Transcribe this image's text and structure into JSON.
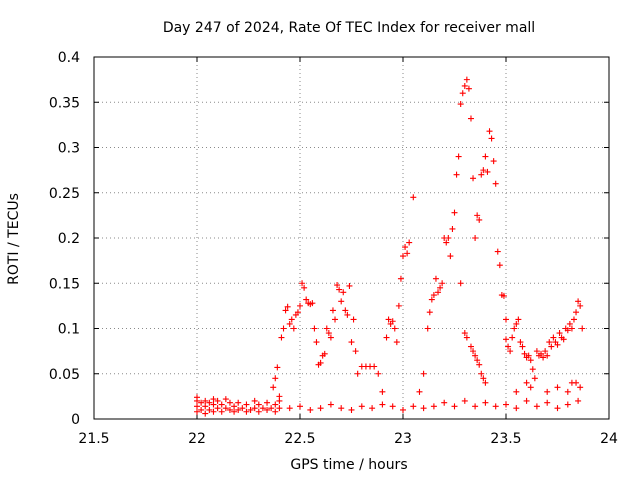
{
  "chart_data": {
    "type": "scatter",
    "title": "Day 247 of 2024, Rate Of TEC Index for receiver mall",
    "xlabel": "GPS time / hours",
    "ylabel": "ROTI / TECUs",
    "xlim": [
      21.5,
      24
    ],
    "ylim": [
      0,
      0.4
    ],
    "x_ticks": [
      21.5,
      22,
      22.5,
      23,
      23.5,
      24
    ],
    "x_tick_labels": [
      "21.5",
      "22",
      "22.5",
      "23",
      "23.5",
      "24"
    ],
    "y_ticks": [
      0,
      0.05,
      0.1,
      0.15,
      0.2,
      0.25,
      0.3,
      0.35,
      0.4
    ],
    "y_tick_labels": [
      "0",
      "0.05",
      "0.1",
      "0.15",
      "0.2",
      "0.25",
      "0.3",
      "0.35",
      "0.4"
    ],
    "grid": true,
    "marker": "+",
    "color": "#ff0000",
    "series": [
      {
        "name": "ROTI",
        "points": [
          [
            22.0,
            0.008
          ],
          [
            22.0,
            0.014
          ],
          [
            22.0,
            0.02
          ],
          [
            22.0,
            0.024
          ],
          [
            22.02,
            0.01
          ],
          [
            22.02,
            0.018
          ],
          [
            22.04,
            0.006
          ],
          [
            22.04,
            0.014
          ],
          [
            22.04,
            0.02
          ],
          [
            22.06,
            0.01
          ],
          [
            22.06,
            0.018
          ],
          [
            22.08,
            0.008
          ],
          [
            22.08,
            0.016
          ],
          [
            22.08,
            0.022
          ],
          [
            22.1,
            0.012
          ],
          [
            22.1,
            0.02
          ],
          [
            22.12,
            0.008
          ],
          [
            22.12,
            0.016
          ],
          [
            22.14,
            0.012
          ],
          [
            22.14,
            0.022
          ],
          [
            22.16,
            0.01
          ],
          [
            22.16,
            0.018
          ],
          [
            22.18,
            0.008
          ],
          [
            22.18,
            0.014
          ],
          [
            22.2,
            0.01
          ],
          [
            22.2,
            0.018
          ],
          [
            22.22,
            0.012
          ],
          [
            22.24,
            0.008
          ],
          [
            22.24,
            0.016
          ],
          [
            22.26,
            0.01
          ],
          [
            22.28,
            0.012
          ],
          [
            22.28,
            0.02
          ],
          [
            22.3,
            0.008
          ],
          [
            22.3,
            0.016
          ],
          [
            22.32,
            0.012
          ],
          [
            22.34,
            0.01
          ],
          [
            22.34,
            0.018
          ],
          [
            22.36,
            0.012
          ],
          [
            22.38,
            0.008
          ],
          [
            22.38,
            0.016
          ],
          [
            22.4,
            0.012
          ],
          [
            22.4,
            0.02
          ],
          [
            22.37,
            0.035
          ],
          [
            22.38,
            0.045
          ],
          [
            22.39,
            0.057
          ],
          [
            22.4,
            0.025
          ],
          [
            22.41,
            0.09
          ],
          [
            22.42,
            0.1
          ],
          [
            22.43,
            0.12
          ],
          [
            22.44,
            0.124
          ],
          [
            22.45,
            0.105
          ],
          [
            22.46,
            0.11
          ],
          [
            22.47,
            0.1
          ],
          [
            22.48,
            0.115
          ],
          [
            22.49,
            0.118
          ],
          [
            22.5,
            0.125
          ],
          [
            22.51,
            0.15
          ],
          [
            22.52,
            0.145
          ],
          [
            22.53,
            0.132
          ],
          [
            22.54,
            0.128
          ],
          [
            22.55,
            0.127
          ],
          [
            22.56,
            0.128
          ],
          [
            22.57,
            0.1
          ],
          [
            22.58,
            0.085
          ],
          [
            22.59,
            0.06
          ],
          [
            22.6,
            0.062
          ],
          [
            22.61,
            0.07
          ],
          [
            22.62,
            0.072
          ],
          [
            22.63,
            0.1
          ],
          [
            22.64,
            0.095
          ],
          [
            22.65,
            0.09
          ],
          [
            22.66,
            0.12
          ],
          [
            22.67,
            0.11
          ],
          [
            22.68,
            0.148
          ],
          [
            22.69,
            0.143
          ],
          [
            22.7,
            0.13
          ],
          [
            22.71,
            0.14
          ],
          [
            22.72,
            0.12
          ],
          [
            22.73,
            0.115
          ],
          [
            22.74,
            0.147
          ],
          [
            22.75,
            0.085
          ],
          [
            22.76,
            0.11
          ],
          [
            22.77,
            0.075
          ],
          [
            22.78,
            0.05
          ],
          [
            22.8,
            0.058
          ],
          [
            22.82,
            0.058
          ],
          [
            22.84,
            0.058
          ],
          [
            22.86,
            0.058
          ],
          [
            22.88,
            0.05
          ],
          [
            22.9,
            0.03
          ],
          [
            22.92,
            0.09
          ],
          [
            22.93,
            0.11
          ],
          [
            22.94,
            0.105
          ],
          [
            22.95,
            0.108
          ],
          [
            22.96,
            0.1
          ],
          [
            22.97,
            0.085
          ],
          [
            22.98,
            0.125
          ],
          [
            22.99,
            0.155
          ],
          [
            23.0,
            0.18
          ],
          [
            23.01,
            0.19
          ],
          [
            23.02,
            0.183
          ],
          [
            23.03,
            0.195
          ],
          [
            23.05,
            0.245
          ],
          [
            23.08,
            0.03
          ],
          [
            23.1,
            0.05
          ],
          [
            23.12,
            0.1
          ],
          [
            23.13,
            0.118
          ],
          [
            23.14,
            0.132
          ],
          [
            23.15,
            0.137
          ],
          [
            23.16,
            0.155
          ],
          [
            23.17,
            0.14
          ],
          [
            23.18,
            0.145
          ],
          [
            23.19,
            0.15
          ],
          [
            23.2,
            0.2
          ],
          [
            23.21,
            0.195
          ],
          [
            23.22,
            0.2
          ],
          [
            23.23,
            0.18
          ],
          [
            23.24,
            0.21
          ],
          [
            23.25,
            0.228
          ],
          [
            23.26,
            0.27
          ],
          [
            23.27,
            0.29
          ],
          [
            23.28,
            0.348
          ],
          [
            23.29,
            0.36
          ],
          [
            23.3,
            0.368
          ],
          [
            23.31,
            0.375
          ],
          [
            23.32,
            0.365
          ],
          [
            23.33,
            0.332
          ],
          [
            23.34,
            0.266
          ],
          [
            23.35,
            0.2
          ],
          [
            23.36,
            0.225
          ],
          [
            23.37,
            0.22
          ],
          [
            23.38,
            0.27
          ],
          [
            23.39,
            0.275
          ],
          [
            23.4,
            0.29
          ],
          [
            23.41,
            0.273
          ],
          [
            23.42,
            0.318
          ],
          [
            23.43,
            0.31
          ],
          [
            23.44,
            0.285
          ],
          [
            23.45,
            0.26
          ],
          [
            23.46,
            0.185
          ],
          [
            23.47,
            0.17
          ],
          [
            23.48,
            0.137
          ],
          [
            23.49,
            0.136
          ],
          [
            23.5,
            0.11
          ],
          [
            23.28,
            0.15
          ],
          [
            23.3,
            0.095
          ],
          [
            23.31,
            0.09
          ],
          [
            23.33,
            0.08
          ],
          [
            23.34,
            0.075
          ],
          [
            23.35,
            0.07
          ],
          [
            23.36,
            0.065
          ],
          [
            23.37,
            0.06
          ],
          [
            23.38,
            0.05
          ],
          [
            23.39,
            0.045
          ],
          [
            23.4,
            0.04
          ],
          [
            23.5,
            0.088
          ],
          [
            23.51,
            0.08
          ],
          [
            23.52,
            0.075
          ],
          [
            23.53,
            0.09
          ],
          [
            23.54,
            0.1
          ],
          [
            23.55,
            0.105
          ],
          [
            23.56,
            0.11
          ],
          [
            23.57,
            0.085
          ],
          [
            23.58,
            0.08
          ],
          [
            23.59,
            0.072
          ],
          [
            23.6,
            0.068
          ],
          [
            23.61,
            0.07
          ],
          [
            23.62,
            0.065
          ],
          [
            23.63,
            0.055
          ],
          [
            23.64,
            0.045
          ],
          [
            23.65,
            0.075
          ],
          [
            23.66,
            0.07
          ],
          [
            23.67,
            0.072
          ],
          [
            23.68,
            0.068
          ],
          [
            23.69,
            0.075
          ],
          [
            23.7,
            0.07
          ],
          [
            23.71,
            0.085
          ],
          [
            23.72,
            0.08
          ],
          [
            23.73,
            0.09
          ],
          [
            23.74,
            0.085
          ],
          [
            23.75,
            0.082
          ],
          [
            23.76,
            0.095
          ],
          [
            23.77,
            0.09
          ],
          [
            23.78,
            0.088
          ],
          [
            23.79,
            0.1
          ],
          [
            23.8,
            0.098
          ],
          [
            23.81,
            0.105
          ],
          [
            23.82,
            0.1
          ],
          [
            23.83,
            0.11
          ],
          [
            23.84,
            0.118
          ],
          [
            23.85,
            0.13
          ],
          [
            23.86,
            0.125
          ],
          [
            23.87,
            0.1
          ],
          [
            22.45,
            0.012
          ],
          [
            22.5,
            0.014
          ],
          [
            22.55,
            0.01
          ],
          [
            22.6,
            0.012
          ],
          [
            22.65,
            0.016
          ],
          [
            22.7,
            0.012
          ],
          [
            22.75,
            0.01
          ],
          [
            22.8,
            0.014
          ],
          [
            22.85,
            0.012
          ],
          [
            22.9,
            0.016
          ],
          [
            22.95,
            0.014
          ],
          [
            23.0,
            0.01
          ],
          [
            23.05,
            0.014
          ],
          [
            23.1,
            0.012
          ],
          [
            23.15,
            0.014
          ],
          [
            23.2,
            0.018
          ],
          [
            23.25,
            0.014
          ],
          [
            23.3,
            0.02
          ],
          [
            23.35,
            0.014
          ],
          [
            23.4,
            0.018
          ],
          [
            23.45,
            0.014
          ],
          [
            23.5,
            0.016
          ],
          [
            23.55,
            0.012
          ],
          [
            23.6,
            0.02
          ],
          [
            23.65,
            0.014
          ],
          [
            23.7,
            0.018
          ],
          [
            23.75,
            0.012
          ],
          [
            23.8,
            0.016
          ],
          [
            23.85,
            0.02
          ],
          [
            23.55,
            0.03
          ],
          [
            23.6,
            0.04
          ],
          [
            23.62,
            0.035
          ],
          [
            23.7,
            0.03
          ],
          [
            23.75,
            0.035
          ],
          [
            23.8,
            0.03
          ],
          [
            23.82,
            0.04
          ],
          [
            23.84,
            0.04
          ],
          [
            23.86,
            0.035
          ]
        ]
      }
    ]
  }
}
